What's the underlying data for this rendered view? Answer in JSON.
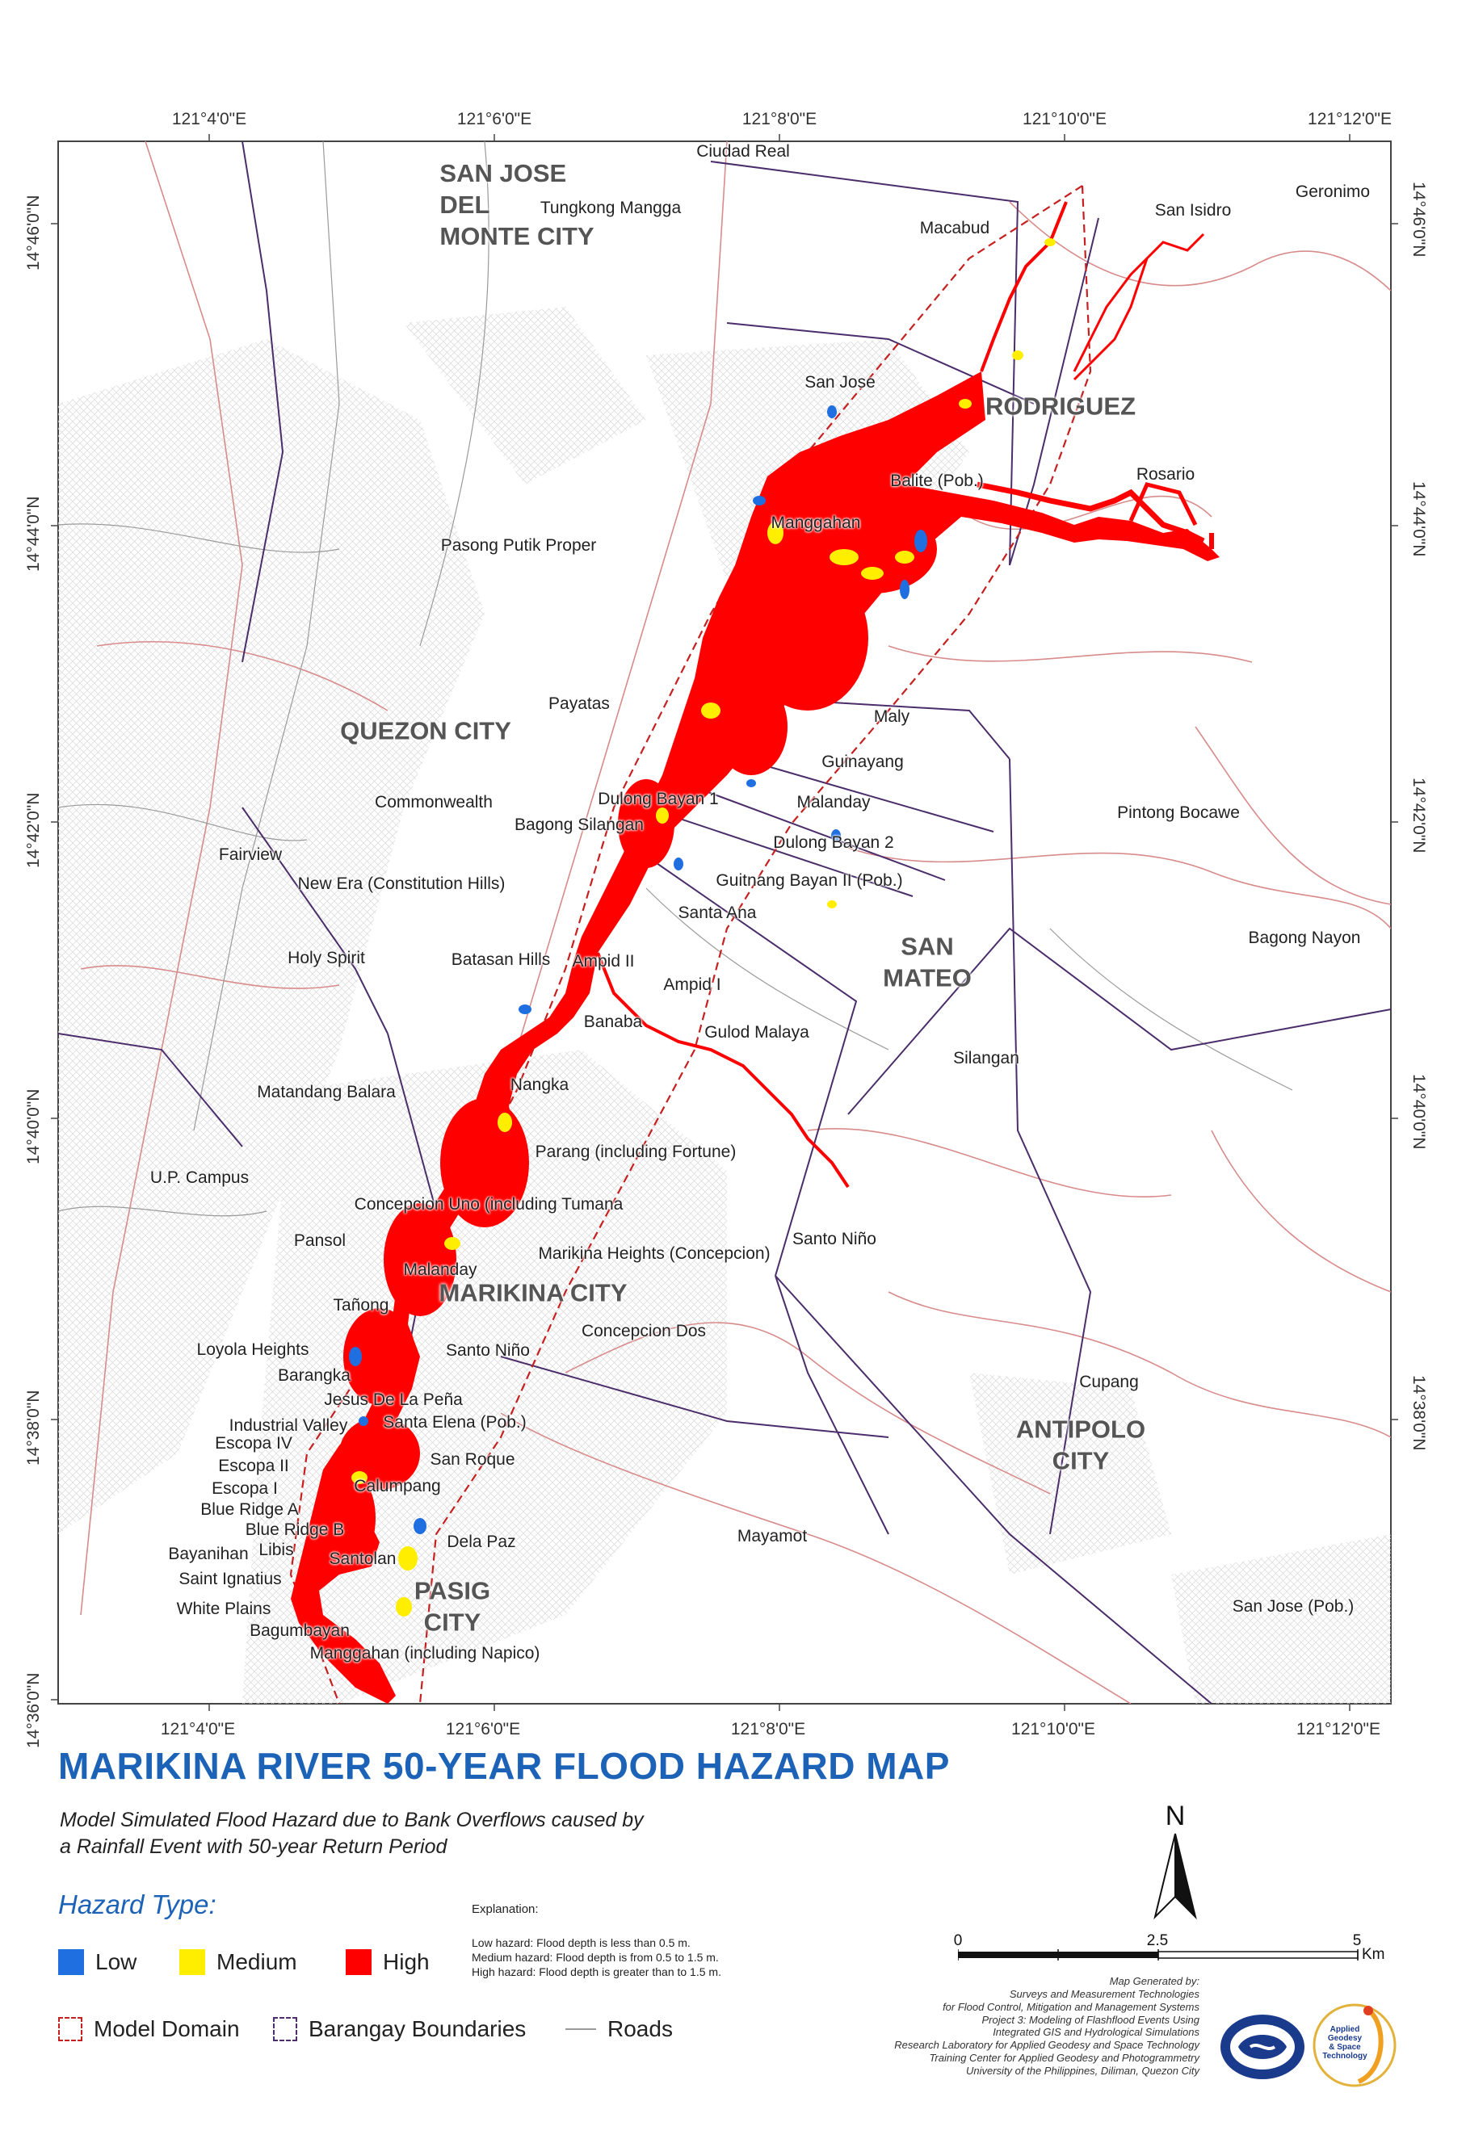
{
  "map": {
    "top_ticks": [
      "121°4'0\"E",
      "121°6'0\"E",
      "121°8'0\"E",
      "121°10'0\"E",
      "121°12'0\"E"
    ],
    "bottom_ticks": [
      "121°4'0\"E",
      "121°6'0\"E",
      "121°8'0\"E",
      "121°10'0\"E",
      "121°12'0\"E"
    ],
    "left_ticks": [
      "14°46'0\"N",
      "14°44'0\"N",
      "14°42'0\"N",
      "14°40'0\"N",
      "14°38'0\"N",
      "14°36'0\"N"
    ],
    "right_ticks": [
      "14°46'0\"N",
      "14°44'0\"N",
      "14°42'0\"N",
      "14°40'0\"N",
      "14°38'0\"N"
    ],
    "cities": {
      "san_jose_del_monte": [
        "SAN JOSE",
        "DEL",
        "MONTE CITY"
      ],
      "rodriguez": "RODRIGUEZ",
      "quezon": "QUEZON CITY",
      "san_mateo": [
        "SAN",
        "MATEO"
      ],
      "marikina": "MARIKINA CITY",
      "antipolo": [
        "ANTIPOLO",
        "CITY"
      ],
      "pasig": [
        "PASIG",
        "CITY"
      ]
    },
    "places": {
      "ciudad_real": "Ciudad Real",
      "tungkong_mangga": "Tungkong Mangga",
      "macabud": "Macabud",
      "san_isidro": "San Isidro",
      "geronimo": "Geronimo",
      "san_jose_rodriguez": "San Jose",
      "balite": "Balite (Pob.)",
      "rosario": "Rosario",
      "manggahan": "Manggahan",
      "pasong_putik": "Pasong Putik Proper",
      "payatas": "Payatas",
      "maly": "Maly",
      "guinayang": "Guinayang",
      "malanday_sm": "Malanday",
      "pintong_bocawe": "Pintong Bocawe",
      "commonwealth": "Commonwealth",
      "dulong_bayan_1": "Dulong Bayan 1",
      "bagong_silangan": "Bagong Silangan",
      "dulong_bayan_2": "Dulong Bayan 2",
      "fairview": "Fairview",
      "new_era": "New Era (Constitution Hills)",
      "guitnang_bayan": "Guitnang Bayan II (Pob.)",
      "santa_ana": "Santa Ana",
      "bagong_nayon": "Bagong Nayon",
      "holy_spirit": "Holy Spirit",
      "batasan_hills": "Batasan Hills",
      "ampid_ii": "Ampid II",
      "ampid_i": "Ampid I",
      "banaba": "Banaba",
      "gulod_malaya": "Gulod Malaya",
      "silangan": "Silangan",
      "matandang_balara": "Matandang Balara",
      "nangka": "Nangka",
      "parang": "Parang (including Fortune)",
      "up_campus": "U.P. Campus",
      "concepcion_uno": "Concepcion Uno (including Tumana",
      "pansol": "Pansol",
      "marikina_heights": "Marikina Heights (Concepcion)",
      "santo_nino_sm": "Santo Niño",
      "malanday_mk": "Malanday",
      "tanong": "Tañong",
      "concepcion_dos": "Concepcion Dos",
      "loyola_heights": "Loyola Heights",
      "santo_nino_mk": "Santo Niño",
      "barangka": "Barangka",
      "jesus_de_la_pena": "Jesus De La Peña",
      "industrial_valley": "Industrial Valley",
      "santa_elena": "Santa Elena (Pob.)",
      "escopa_iv": "Escopa IV",
      "escopa_ii": "Escopa II",
      "escopa_i": "Escopa I",
      "san_roque": "San Roque",
      "cupang": "Cupang",
      "blue_ridge_a": "Blue Ridge A",
      "calumpang": "Calumpang",
      "blue_ridge_b": "Blue Ridge B",
      "dela_paz": "Dela Paz",
      "bayanihan": "Bayanihan",
      "libis": "Libis",
      "mayamot": "Mayamot",
      "santolan": "Santolan",
      "saint_ignatius": "Saint Ignatius",
      "white_plains": "White Plains",
      "bagumbayan": "Bagumbayan",
      "san_jose_pob": "San Jose (Pob.)",
      "manggahan_napico": "Manggahan (including Napico)"
    }
  },
  "title": "MARIKINA RIVER 50-YEAR FLOOD HAZARD MAP",
  "subtitle_lines": [
    "Model Simulated Flood Hazard due to Bank Overflows caused by",
    "a Rainfall Event with 50-year Return Period"
  ],
  "legend": {
    "heading": "Hazard Type:",
    "low": "Low",
    "medium": "Medium",
    "high": "High",
    "model_domain": "Model Domain",
    "barangay": "Barangay Boundaries",
    "roads": "Roads",
    "colors": {
      "low": "#1f6fe0",
      "medium": "#ffee00",
      "high": "#ff0000"
    }
  },
  "explanation": {
    "heading": "Explanation:",
    "low": "Low hazard: Flood depth is less than 0.5 m.",
    "medium": "Medium hazard: Flood depth is from 0.5 to 1.5 m.",
    "high": "High hazard: Flood depth is greater than to 1.5 m."
  },
  "north": "N",
  "scale": {
    "zero": "0",
    "mid": "2.5",
    "end": "5",
    "unit": "Km"
  },
  "credits": [
    "Map Generated by:",
    "Surveys and Measurement Technologies",
    "for Flood Control, Mitigation and Management Systems",
    "Project 3: Modeling of Flashflood Events Using",
    "Integrated GIS and Hydrological Simulations",
    "Research Laboratory for Applied Geodesy and Space Technology",
    "Training Center for Applied Geodesy and Photogrammetry",
    "University of the Philippines, Diliman, Quezon City"
  ],
  "logo_text": [
    "Applied",
    "Geodesy",
    "& Space",
    "Technology"
  ]
}
